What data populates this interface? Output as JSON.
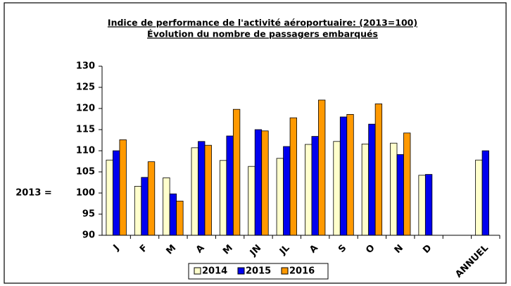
{
  "chart_data": {
    "type": "bar",
    "title": "Indice de performance de l'activité aéroportuaire: (2013=100)",
    "subtitle": "Évolution du nombre de passagers embarqués",
    "y_label": "2013 =",
    "categories": [
      "J",
      "F",
      "M",
      "A",
      "M",
      "JN",
      "JL",
      "A",
      "S",
      "O",
      "N",
      "D",
      null,
      "ANNUEL"
    ],
    "series": [
      {
        "name": "2014",
        "color": "#ffffcc",
        "values": [
          107.8,
          101.6,
          103.6,
          110.7,
          107.7,
          106.3,
          108.2,
          111.5,
          112.2,
          111.6,
          111.8,
          104.2,
          null,
          107.8
        ]
      },
      {
        "name": "2015",
        "color": "#0000ee",
        "values": [
          110.0,
          103.7,
          99.8,
          112.2,
          113.5,
          115.0,
          111.0,
          113.4,
          118.0,
          116.3,
          109.1,
          104.4,
          null,
          110.0
        ]
      },
      {
        "name": "2016",
        "color": "#ff9900",
        "values": [
          112.6,
          107.4,
          98.1,
          111.3,
          119.8,
          114.7,
          117.8,
          122.0,
          118.6,
          121.1,
          114.2,
          null,
          null,
          null
        ]
      }
    ],
    "ylim": [
      90,
      130
    ],
    "yticks": [
      90,
      95,
      100,
      105,
      110,
      115,
      120,
      125,
      130
    ],
    "grid": false,
    "legend": "bottom"
  }
}
